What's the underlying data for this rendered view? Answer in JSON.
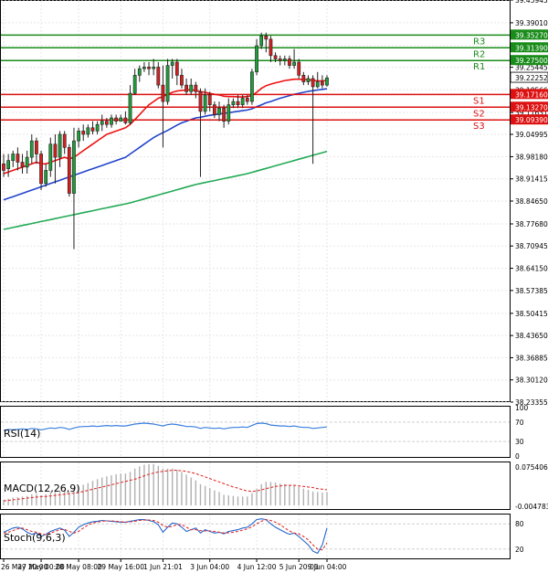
{
  "chart_data": {
    "type": "candlestick",
    "main_panel": {
      "y_ticks": [
        "39.45945",
        "39.39010",
        "39.32075",
        "39.25445",
        "39.18566",
        "39.11631",
        "39.04995",
        "38.98180",
        "38.91415",
        "38.84650",
        "38.77680",
        "38.70945",
        "38.64150",
        "38.57385",
        "38.50415",
        "38.43650",
        "38.36885",
        "38.30120",
        "38.23355"
      ],
      "ylim": [
        38.2335,
        39.4595
      ],
      "levels": [
        {
          "name": "R3",
          "value": 39.3527,
          "label": "39.35270",
          "color": "#1a8c1a"
        },
        {
          "name": "R2",
          "value": 39.3139,
          "label": "39.31390",
          "color": "#1a8c1a"
        },
        {
          "name": "R1",
          "value": 39.275,
          "label": "39.27500",
          "color": "#1a8c1a"
        },
        {
          "name": "S1",
          "value": 39.1716,
          "label": "39.17160",
          "color": "#dd1111"
        },
        {
          "name": "S2",
          "value": 39.1327,
          "label": "39.13270",
          "color": "#dd1111"
        },
        {
          "name": "S3",
          "value": 39.0939,
          "label": "39.09390",
          "color": "#dd1111"
        }
      ],
      "current_price": {
        "value": 39.22252,
        "label": "39.22252"
      },
      "candles": [
        [
          38.96,
          38.94,
          38.99,
          38.92
        ],
        [
          38.945,
          38.97,
          38.99,
          38.92
        ],
        [
          38.97,
          38.99,
          39.0,
          38.95
        ],
        [
          38.99,
          38.965,
          39.01,
          38.94
        ],
        [
          38.965,
          38.95,
          38.99,
          38.93
        ],
        [
          38.95,
          38.98,
          39.0,
          38.93
        ],
        [
          38.98,
          39.03,
          39.05,
          38.96
        ],
        [
          39.03,
          38.99,
          39.04,
          38.96
        ],
        [
          38.99,
          38.9,
          39.0,
          38.88
        ],
        [
          38.9,
          38.94,
          38.96,
          38.89
        ],
        [
          38.94,
          39.02,
          39.04,
          38.92
        ],
        [
          39.02,
          38.98,
          39.05,
          38.9
        ],
        [
          38.98,
          39.05,
          39.06,
          38.95
        ],
        [
          39.05,
          39.01,
          39.06,
          38.99
        ],
        [
          39.01,
          38.87,
          39.02,
          38.86
        ],
        [
          38.87,
          39.03,
          39.07,
          38.7
        ],
        [
          39.03,
          39.06,
          39.07,
          39.01
        ],
        [
          39.06,
          39.05,
          39.08,
          39.03
        ],
        [
          39.05,
          39.07,
          39.08,
          39.04
        ],
        [
          39.07,
          39.06,
          39.09,
          39.05
        ],
        [
          39.06,
          39.08,
          39.09,
          39.05
        ],
        [
          39.08,
          39.09,
          39.11,
          39.06
        ],
        [
          39.09,
          39.08,
          39.1,
          39.07
        ],
        [
          39.08,
          39.1,
          39.11,
          39.07
        ],
        [
          39.1,
          39.09,
          39.11,
          39.08
        ],
        [
          39.09,
          39.1,
          39.11,
          39.09
        ],
        [
          39.1,
          39.085,
          39.12,
          39.08
        ],
        [
          39.085,
          39.175,
          39.2,
          39.08
        ],
        [
          39.175,
          39.23,
          39.25,
          39.17
        ],
        [
          39.23,
          39.25,
          39.26,
          39.21
        ],
        [
          39.25,
          39.255,
          39.27,
          39.24
        ],
        [
          39.255,
          39.25,
          39.27,
          39.23
        ],
        [
          39.25,
          39.255,
          39.28,
          39.23
        ],
        [
          39.255,
          39.2,
          39.27,
          39.19
        ],
        [
          39.2,
          39.15,
          39.26,
          39.01
        ],
        [
          39.15,
          39.26,
          39.28,
          39.14
        ],
        [
          39.26,
          39.27,
          39.28,
          39.22
        ],
        [
          39.27,
          39.23,
          39.28,
          39.2
        ],
        [
          39.23,
          39.2,
          39.25,
          39.19
        ],
        [
          39.2,
          39.18,
          39.22,
          39.17
        ],
        [
          39.18,
          39.2,
          39.22,
          39.17
        ],
        [
          39.2,
          39.18,
          39.21,
          39.16
        ],
        [
          39.18,
          39.12,
          39.19,
          38.92
        ],
        [
          39.12,
          39.17,
          39.19,
          39.11
        ],
        [
          39.17,
          39.14,
          39.18,
          39.12
        ],
        [
          39.14,
          39.11,
          39.15,
          39.1
        ],
        [
          39.11,
          39.13,
          39.15,
          39.09
        ],
        [
          39.13,
          39.09,
          39.14,
          39.07
        ],
        [
          39.09,
          39.14,
          39.16,
          39.08
        ],
        [
          39.14,
          39.15,
          39.16,
          39.13
        ],
        [
          39.15,
          39.14,
          39.17,
          39.13
        ],
        [
          39.14,
          39.16,
          39.17,
          39.13
        ],
        [
          39.16,
          39.15,
          39.17,
          39.14
        ],
        [
          39.15,
          39.24,
          39.25,
          39.14
        ],
        [
          39.24,
          39.32,
          39.34,
          39.23
        ],
        [
          39.32,
          39.35,
          39.36,
          39.31
        ],
        [
          39.35,
          39.34,
          39.36,
          39.3
        ],
        [
          39.34,
          39.29,
          39.35,
          39.27
        ],
        [
          39.29,
          39.28,
          39.3,
          39.27
        ],
        [
          39.28,
          39.275,
          39.29,
          39.26
        ],
        [
          39.275,
          39.28,
          39.29,
          39.26
        ],
        [
          39.28,
          39.26,
          39.29,
          39.25
        ],
        [
          39.26,
          39.27,
          39.31,
          39.25
        ],
        [
          39.27,
          39.23,
          39.28,
          39.22
        ],
        [
          39.23,
          39.21,
          39.24,
          39.2
        ],
        [
          39.21,
          39.22,
          39.23,
          39.2
        ],
        [
          39.22,
          39.195,
          39.23,
          38.96
        ],
        [
          39.195,
          39.21,
          39.24,
          39.19
        ],
        [
          39.21,
          39.2,
          39.23,
          39.19
        ],
        [
          39.2,
          39.222,
          39.23,
          39.195
        ]
      ],
      "ma_series": [
        {
          "name": "MA red",
          "color": "#ee1111",
          "values": [
            38.93,
            38.935,
            38.94,
            38.945,
            38.95,
            38.955,
            38.96,
            38.965,
            38.96,
            38.96,
            38.965,
            38.97,
            38.975,
            38.98,
            38.975,
            38.98,
            38.99,
            39.0,
            39.01,
            39.02,
            39.03,
            39.04,
            39.05,
            39.055,
            39.06,
            39.065,
            39.07,
            39.08,
            39.095,
            39.11,
            39.125,
            39.14,
            39.15,
            39.16,
            39.165,
            39.172,
            39.178,
            39.182,
            39.184,
            39.185,
            39.186,
            39.184,
            39.18,
            39.178,
            39.175,
            39.172,
            39.17,
            39.166,
            39.165,
            39.165,
            39.164,
            39.164,
            39.165,
            39.168,
            39.178,
            39.19,
            39.198,
            39.203,
            39.207,
            39.21,
            39.214,
            39.216,
            39.218,
            39.218,
            39.217,
            39.217,
            39.214,
            39.213,
            39.213,
            39.214
          ]
        },
        {
          "name": "MA blue",
          "color": "#2244cc",
          "values": [
            38.85,
            38.855,
            38.86,
            38.865,
            38.87,
            38.875,
            38.88,
            38.885,
            38.89,
            38.895,
            38.9,
            38.905,
            38.91,
            38.915,
            38.92,
            38.925,
            38.93,
            38.935,
            38.94,
            38.945,
            38.95,
            38.955,
            38.96,
            38.965,
            38.97,
            38.975,
            38.98,
            38.99,
            39.0,
            39.01,
            39.02,
            39.03,
            39.04,
            39.048,
            39.055,
            39.062,
            39.07,
            39.078,
            39.085,
            39.09,
            39.095,
            39.1,
            39.102,
            39.105,
            39.108,
            39.11,
            39.112,
            39.114,
            39.116,
            39.118,
            39.12,
            39.122,
            39.124,
            39.128,
            39.134,
            39.14,
            39.146,
            39.15,
            39.155,
            39.16,
            39.164,
            39.168,
            39.172,
            39.175,
            39.178,
            39.181,
            39.183,
            39.185,
            39.187,
            39.189
          ]
        },
        {
          "name": "MA green",
          "color": "#22aa55",
          "values": [
            38.76,
            38.763,
            38.766,
            38.769,
            38.772,
            38.775,
            38.778,
            38.781,
            38.784,
            38.787,
            38.79,
            38.793,
            38.796,
            38.799,
            38.802,
            38.805,
            38.808,
            38.811,
            38.814,
            38.817,
            38.82,
            38.823,
            38.826,
            38.829,
            38.832,
            38.835,
            38.838,
            38.841,
            38.845,
            38.849,
            38.853,
            38.857,
            38.861,
            38.865,
            38.869,
            38.873,
            38.877,
            38.881,
            38.885,
            38.889,
            38.893,
            38.897,
            38.9,
            38.903,
            38.906,
            38.909,
            38.912,
            38.915,
            38.918,
            38.921,
            38.924,
            38.927,
            38.93,
            38.934,
            38.938,
            38.942,
            38.946,
            38.95,
            38.954,
            38.958,
            38.962,
            38.966,
            38.97,
            38.974,
            38.978,
            38.982,
            38.986,
            38.99,
            38.994,
            38.998
          ]
        }
      ]
    },
    "x_ticks": [
      {
        "label": "26 May 20:00",
        "index": 0
      },
      {
        "label": "27 May 00:00",
        "index": 8
      },
      {
        "label": "28 May 08:00",
        "index": 16
      },
      {
        "label": "29 May 16:00",
        "index": 25
      },
      {
        "label": "1 Jun 21:01",
        "index": 34
      },
      {
        "label": "3 Jun 04:00",
        "index": 44
      },
      {
        "label": "4 Jun 12:00",
        "index": 54
      },
      {
        "label": "5 Jun 20:00",
        "index": 63
      },
      {
        "label": "9 Jun 04:00",
        "index": 69
      }
    ],
    "rsi": {
      "label": "RSI(14)",
      "ticks": [
        "100",
        "70",
        "30",
        "0"
      ],
      "ylim": [
        0,
        100
      ],
      "color": "#3a7fdd",
      "values": [
        52,
        55,
        54,
        55,
        56,
        55,
        57,
        56,
        54,
        56,
        58,
        57,
        59,
        58,
        55,
        58,
        60,
        61,
        61,
        62,
        61,
        62,
        63,
        62,
        63,
        62,
        62,
        64,
        66,
        67,
        68,
        67,
        66,
        64,
        62,
        65,
        66,
        65,
        63,
        61,
        61,
        60,
        57,
        59,
        58,
        57,
        58,
        56,
        58,
        59,
        59,
        60,
        59,
        63,
        67,
        68,
        67,
        64,
        63,
        62,
        62,
        61,
        62,
        60,
        59,
        59,
        57,
        58,
        59,
        60
      ]
    },
    "macd": {
      "label": "MACD(12,26,9)",
      "ticks": [
        "0.075406",
        "-0.004783"
      ],
      "ylim": [
        -0.0048,
        0.0754
      ],
      "hist_color": "#b0b0b0",
      "signal_color": "#e03030",
      "hist": [
        0.01,
        0.012,
        0.014,
        0.015,
        0.016,
        0.017,
        0.02,
        0.02,
        0.018,
        0.02,
        0.024,
        0.024,
        0.027,
        0.028,
        0.024,
        0.03,
        0.034,
        0.037,
        0.04,
        0.044,
        0.047,
        0.05,
        0.052,
        0.054,
        0.056,
        0.057,
        0.057,
        0.06,
        0.066,
        0.07,
        0.073,
        0.074,
        0.074,
        0.071,
        0.066,
        0.066,
        0.066,
        0.064,
        0.06,
        0.055,
        0.05,
        0.045,
        0.038,
        0.035,
        0.031,
        0.027,
        0.024,
        0.019,
        0.018,
        0.017,
        0.016,
        0.016,
        0.016,
        0.022,
        0.03,
        0.038,
        0.042,
        0.042,
        0.041,
        0.039,
        0.038,
        0.036,
        0.036,
        0.033,
        0.03,
        0.028,
        0.025,
        0.024,
        0.023,
        0.024
      ],
      "signal": [
        0.008,
        0.009,
        0.01,
        0.011,
        0.012,
        0.013,
        0.014,
        0.015,
        0.016,
        0.016,
        0.017,
        0.018,
        0.019,
        0.02,
        0.021,
        0.022,
        0.023,
        0.025,
        0.027,
        0.029,
        0.031,
        0.033,
        0.035,
        0.037,
        0.039,
        0.041,
        0.043,
        0.045,
        0.047,
        0.05,
        0.053,
        0.056,
        0.058,
        0.06,
        0.061,
        0.062,
        0.063,
        0.063,
        0.062,
        0.061,
        0.059,
        0.057,
        0.054,
        0.051,
        0.048,
        0.045,
        0.042,
        0.039,
        0.036,
        0.033,
        0.031,
        0.028,
        0.026,
        0.025,
        0.026,
        0.028,
        0.03,
        0.032,
        0.034,
        0.035,
        0.036,
        0.036,
        0.036,
        0.035,
        0.034,
        0.033,
        0.032,
        0.03,
        0.029,
        0.028
      ]
    },
    "stoch": {
      "label": "Stoch(9,6,3)",
      "ticks": [
        "80",
        "20"
      ],
      "ylim": [
        0,
        100
      ],
      "k_color": "#2266cc",
      "d_color": "#e03030",
      "k": [
        60,
        65,
        70,
        72,
        68,
        60,
        55,
        58,
        50,
        55,
        62,
        66,
        70,
        65,
        50,
        60,
        72,
        78,
        82,
        85,
        86,
        88,
        87,
        86,
        85,
        84,
        84,
        86,
        88,
        90,
        90,
        88,
        85,
        78,
        60,
        72,
        82,
        80,
        72,
        62,
        66,
        70,
        58,
        66,
        62,
        58,
        60,
        56,
        62,
        64,
        66,
        70,
        72,
        80,
        90,
        92,
        90,
        80,
        72,
        66,
        60,
        55,
        58,
        50,
        40,
        30,
        15,
        10,
        30,
        70
      ],
      "d": [
        58,
        60,
        64,
        68,
        70,
        66,
        62,
        60,
        56,
        54,
        58,
        62,
        66,
        67,
        62,
        58,
        62,
        70,
        77,
        82,
        84,
        86,
        87,
        87,
        86,
        85,
        84,
        85,
        86,
        88,
        89,
        89,
        88,
        84,
        76,
        72,
        74,
        78,
        78,
        72,
        66,
        66,
        64,
        63,
        63,
        62,
        60,
        58,
        59,
        60,
        62,
        65,
        68,
        73,
        80,
        86,
        90,
        88,
        84,
        78,
        70,
        63,
        58,
        56,
        50,
        42,
        30,
        20,
        18,
        35
      ]
    }
  }
}
